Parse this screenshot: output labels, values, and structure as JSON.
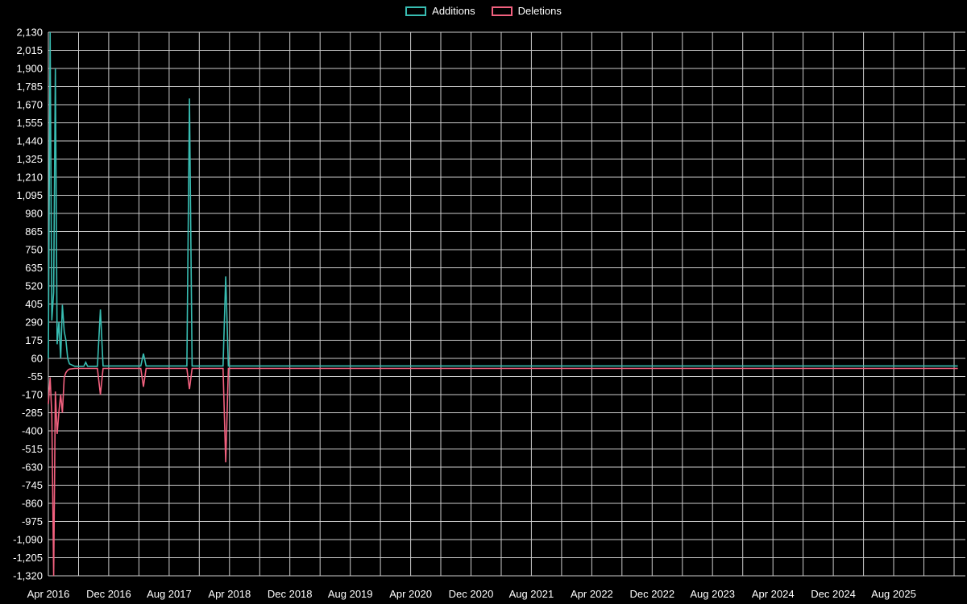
{
  "legend": {
    "additions_label": "Additions",
    "deletions_label": "Deletions"
  },
  "colors": {
    "background": "#000000",
    "grid": "#ffffff",
    "text": "#ffffff",
    "additions": "#38bdb2",
    "deletions": "#f2617f"
  },
  "chart_data": {
    "type": "line",
    "title": "",
    "xlabel": "",
    "ylabel": "",
    "legend_position": "top-center",
    "grid": true,
    "x_axis": {
      "unit": "months since Apr 2016",
      "min": 0,
      "max": 121.5,
      "tick_step_months": 8,
      "gridline_step_months": 4,
      "gridline_max_month": 120,
      "tick_labels": [
        "Apr 2016",
        "Dec 2016",
        "Aug 2017",
        "Apr 2018",
        "Dec 2018",
        "Aug 2019",
        "Apr 2020",
        "Dec 2020",
        "Aug 2021",
        "Apr 2022",
        "Dec 2022",
        "Aug 2023",
        "Apr 2024",
        "Dec 2024",
        "Aug 2025"
      ]
    },
    "y_axis": {
      "min": -1320,
      "max": 2130,
      "tick_step": 115,
      "tick_labels": [
        "2,130",
        "2,015",
        "1,900",
        "1,785",
        "1,670",
        "1,555",
        "1,440",
        "1,325",
        "1,210",
        "1,095",
        "980",
        "865",
        "750",
        "635",
        "520",
        "405",
        "290",
        "175",
        "60",
        "-55",
        "-170",
        "-285",
        "-400",
        "-515",
        "-630",
        "-745",
        "-860",
        "-975",
        "-1,090",
        "-1,205",
        "-1,320"
      ]
    },
    "series": [
      {
        "name": "Additions",
        "color": "#38bdb2",
        "points": [
          [
            0.0,
            60
          ],
          [
            0.23,
            2130
          ],
          [
            0.46,
            300
          ],
          [
            0.7,
            480
          ],
          [
            0.93,
            1900
          ],
          [
            1.16,
            150
          ],
          [
            1.4,
            290
          ],
          [
            1.63,
            60
          ],
          [
            1.86,
            400
          ],
          [
            2.1,
            230
          ],
          [
            2.33,
            175
          ],
          [
            2.56,
            60
          ],
          [
            2.8,
            25
          ],
          [
            3.5,
            10
          ],
          [
            4.7,
            10
          ],
          [
            4.95,
            35
          ],
          [
            5.2,
            10
          ],
          [
            6.5,
            10
          ],
          [
            6.9,
            370
          ],
          [
            7.25,
            12
          ],
          [
            12.25,
            12
          ],
          [
            12.6,
            90
          ],
          [
            12.95,
            12
          ],
          [
            18.35,
            12
          ],
          [
            18.7,
            1710
          ],
          [
            19.05,
            12
          ],
          [
            23.15,
            12
          ],
          [
            23.5,
            580
          ],
          [
            23.85,
            12
          ],
          [
            120.5,
            12
          ]
        ]
      },
      {
        "name": "Deletions",
        "color": "#f2617f",
        "points": [
          [
            0.0,
            -230
          ],
          [
            0.23,
            -60
          ],
          [
            0.46,
            -300
          ],
          [
            0.7,
            -1320
          ],
          [
            0.93,
            -150
          ],
          [
            1.16,
            -420
          ],
          [
            1.4,
            -280
          ],
          [
            1.63,
            -170
          ],
          [
            1.86,
            -285
          ],
          [
            2.1,
            -60
          ],
          [
            2.33,
            -30
          ],
          [
            2.56,
            -15
          ],
          [
            2.8,
            -8
          ],
          [
            3.5,
            -4
          ],
          [
            6.5,
            -4
          ],
          [
            6.9,
            -170
          ],
          [
            7.25,
            -4
          ],
          [
            12.25,
            -4
          ],
          [
            12.6,
            -120
          ],
          [
            12.95,
            -4
          ],
          [
            18.35,
            -4
          ],
          [
            18.7,
            -135
          ],
          [
            19.05,
            -4
          ],
          [
            23.15,
            -4
          ],
          [
            23.5,
            -600
          ],
          [
            23.85,
            -4
          ],
          [
            120.5,
            -4
          ]
        ]
      }
    ]
  }
}
